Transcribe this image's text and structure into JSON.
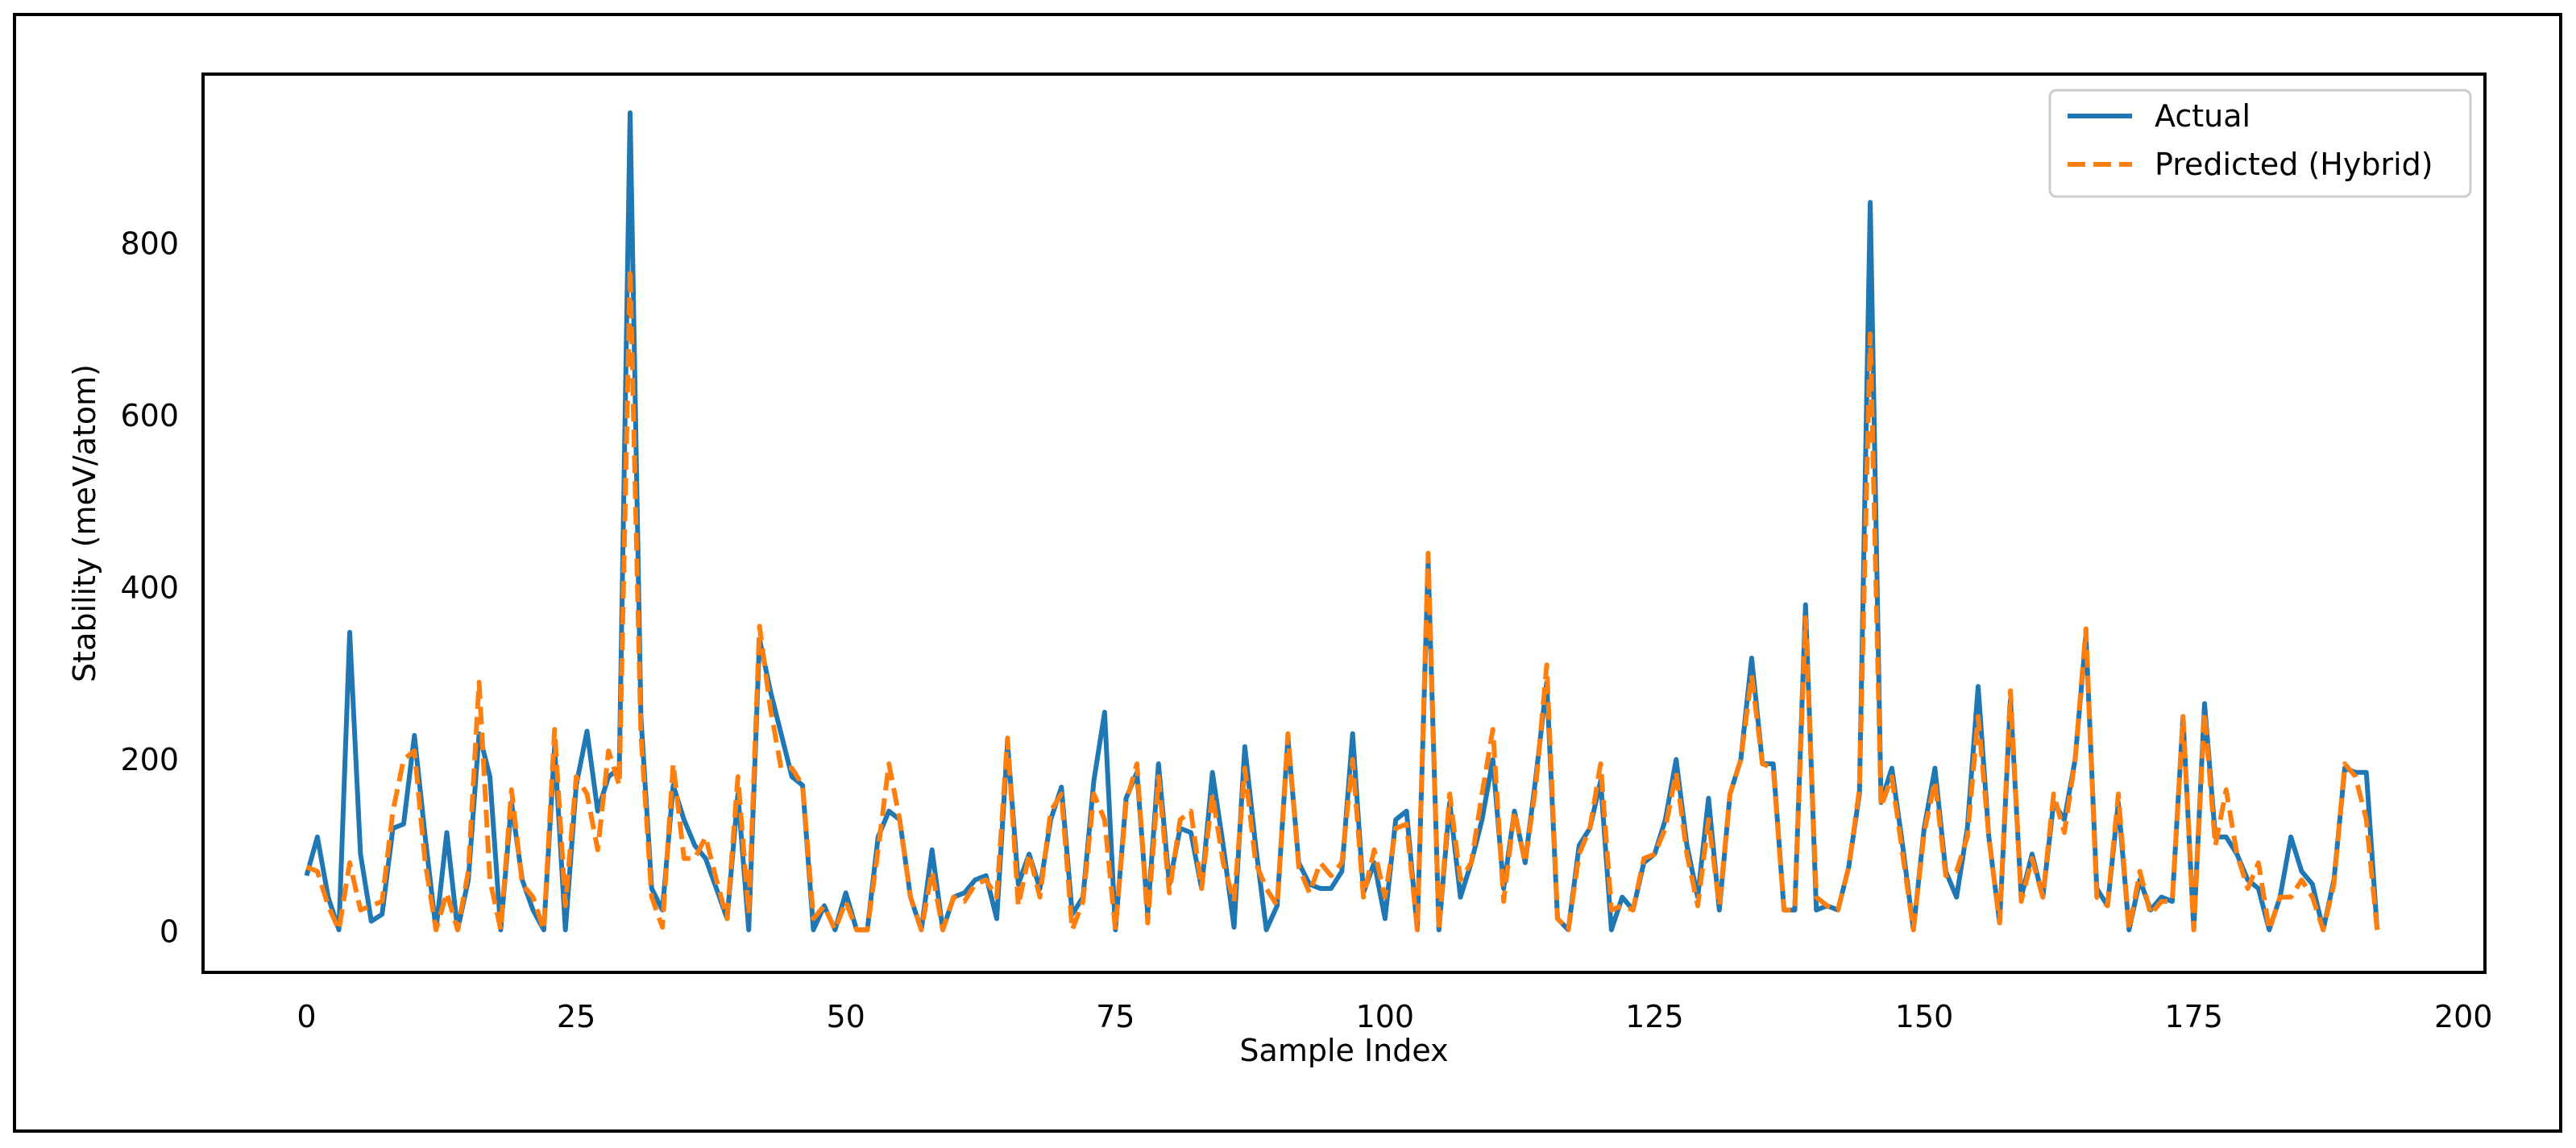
{
  "chart_data": {
    "type": "line",
    "title": "",
    "xlabel": "Sample Index",
    "ylabel": "Stability (meV/atom)",
    "xlim": [
      -9.6,
      202
    ],
    "ylim": [
      -47.5,
      997
    ],
    "xticks": [
      0,
      25,
      50,
      75,
      100,
      125,
      150,
      175,
      200
    ],
    "yticks": [
      0,
      200,
      400,
      600,
      800
    ],
    "grid": false,
    "legend_position": "top-right",
    "series": [
      {
        "name": "Actual",
        "color": "#1f77b4",
        "style": "solid",
        "values": [
          65,
          110,
          40,
          2,
          348,
          90,
          12,
          20,
          120,
          125,
          228,
          110,
          2,
          115,
          2,
          60,
          230,
          180,
          2,
          150,
          60,
          25,
          2,
          215,
          2,
          170,
          233,
          140,
          180,
          190,
          952,
          250,
          50,
          25,
          170,
          130,
          100,
          85,
          50,
          15,
          160,
          2,
          340,
          280,
          230,
          180,
          170,
          2,
          30,
          2,
          45,
          2,
          2,
          110,
          140,
          130,
          40,
          2,
          95,
          2,
          40,
          45,
          60,
          65,
          15,
          220,
          55,
          90,
          50,
          130,
          168,
          20,
          40,
          175,
          255,
          2,
          155,
          185,
          20,
          195,
          55,
          120,
          115,
          50,
          185,
          100,
          5,
          215,
          100,
          2,
          30,
          225,
          80,
          55,
          50,
          50,
          70,
          230,
          45,
          80,
          15,
          130,
          140,
          2,
          430,
          2,
          150,
          40,
          80,
          130,
          200,
          50,
          140,
          80,
          180,
          290,
          15,
          2,
          100,
          120,
          175,
          2,
          40,
          25,
          80,
          90,
          130,
          200,
          100,
          40,
          155,
          25,
          160,
          200,
          318,
          195,
          195,
          25,
          25,
          380,
          25,
          30,
          25,
          75,
          160,
          848,
          150,
          190,
          100,
          2,
          120,
          190,
          70,
          40,
          120,
          285,
          110,
          10,
          270,
          40,
          90,
          40,
          150,
          130,
          200,
          345,
          50,
          30,
          150,
          2,
          60,
          25,
          40,
          35,
          250,
          2,
          265,
          110,
          110,
          90,
          60,
          50,
          2,
          40,
          110,
          70,
          55,
          2,
          60,
          190,
          185,
          185,
          2
        ]
      },
      {
        "name": "Predicted (Hybrid)",
        "color": "#ff7f0e",
        "style": "dashed",
        "values": [
          75,
          70,
          30,
          2,
          80,
          25,
          30,
          35,
          140,
          200,
          210,
          80,
          2,
          45,
          2,
          70,
          290,
          60,
          2,
          165,
          55,
          40,
          2,
          235,
          30,
          180,
          160,
          95,
          210,
          170,
          770,
          230,
          40,
          5,
          195,
          85,
          85,
          110,
          60,
          15,
          180,
          20,
          355,
          260,
          190,
          190,
          170,
          15,
          30,
          2,
          35,
          2,
          2,
          95,
          195,
          130,
          40,
          2,
          70,
          2,
          40,
          35,
          55,
          60,
          40,
          225,
          30,
          90,
          40,
          140,
          160,
          2,
          35,
          160,
          130,
          2,
          150,
          195,
          10,
          180,
          45,
          130,
          140,
          50,
          160,
          80,
          35,
          190,
          80,
          50,
          30,
          230,
          75,
          45,
          80,
          65,
          80,
          200,
          40,
          95,
          40,
          120,
          125,
          2,
          440,
          2,
          160,
          60,
          80,
          160,
          235,
          35,
          140,
          80,
          170,
          310,
          15,
          2,
          90,
          120,
          195,
          25,
          30,
          25,
          85,
          90,
          120,
          185,
          90,
          30,
          130,
          30,
          160,
          200,
          298,
          195,
          190,
          25,
          25,
          365,
          40,
          30,
          25,
          75,
          165,
          695,
          145,
          180,
          90,
          2,
          115,
          175,
          65,
          70,
          110,
          250,
          110,
          10,
          280,
          35,
          85,
          40,
          160,
          115,
          200,
          352,
          40,
          30,
          160,
          2,
          70,
          20,
          35,
          35,
          250,
          2,
          255,
          100,
          165,
          90,
          50,
          80,
          2,
          40,
          40,
          60,
          40,
          2,
          55,
          195,
          180,
          130,
          2
        ]
      }
    ]
  }
}
